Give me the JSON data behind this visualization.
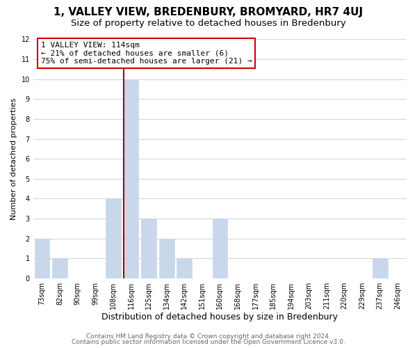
{
  "title": "1, VALLEY VIEW, BREDENBURY, BROMYARD, HR7 4UJ",
  "subtitle": "Size of property relative to detached houses in Bredenbury",
  "xlabel": "Distribution of detached houses by size in Bredenbury",
  "ylabel": "Number of detached properties",
  "bar_labels": [
    "73sqm",
    "82sqm",
    "90sqm",
    "99sqm",
    "108sqm",
    "116sqm",
    "125sqm",
    "134sqm",
    "142sqm",
    "151sqm",
    "160sqm",
    "168sqm",
    "177sqm",
    "185sqm",
    "194sqm",
    "203sqm",
    "211sqm",
    "220sqm",
    "229sqm",
    "237sqm",
    "246sqm"
  ],
  "bar_values": [
    2,
    1,
    0,
    0,
    4,
    10,
    3,
    2,
    1,
    0,
    3,
    0,
    0,
    0,
    0,
    0,
    0,
    0,
    0,
    1,
    0
  ],
  "bar_color": "#c8d8ea",
  "red_line_index": 5,
  "annotation_text_line1": "1 VALLEY VIEW: 114sqm",
  "annotation_text_line2": "← 21% of detached houses are smaller (6)",
  "annotation_text_line3": "75% of semi-detached houses are larger (21) →",
  "annotation_box_edge": "#cc0000",
  "red_line_color": "#aa0000",
  "ylim": [
    0,
    12
  ],
  "yticks": [
    0,
    1,
    2,
    3,
    4,
    5,
    6,
    7,
    8,
    9,
    10,
    11,
    12
  ],
  "footer1": "Contains HM Land Registry data © Crown copyright and database right 2024.",
  "footer2": "Contains public sector information licensed under the Open Government Licence v3.0.",
  "grid_color": "#d0d8e0",
  "background_color": "#ffffff",
  "title_fontsize": 11,
  "subtitle_fontsize": 9.5,
  "xlabel_fontsize": 9,
  "ylabel_fontsize": 8,
  "tick_fontsize": 7,
  "annotation_fontsize": 8,
  "footer_fontsize": 6.5
}
